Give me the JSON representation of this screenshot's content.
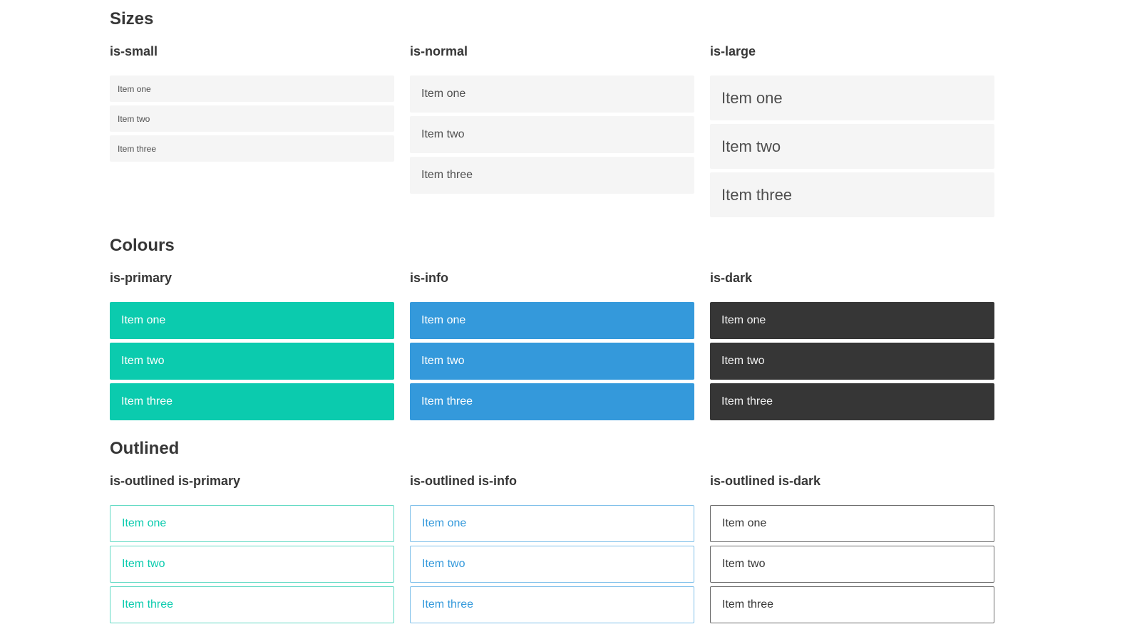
{
  "colors": {
    "white": "#ffffff",
    "heading": "#363636",
    "text": "#4f4f4f",
    "item_bg": "#f5f5f5",
    "primary": "#0bcbae",
    "info": "#3499db",
    "dark": "#363636",
    "primary_border": "#62dac4",
    "info_border": "#7fc0ea",
    "dark_border": "#6d6d6d"
  },
  "sections": [
    {
      "id": "sizes",
      "title": "Sizes",
      "groups": [
        {
          "heading": "is-small",
          "variant": "size-small",
          "items": [
            "Item one",
            "Item two",
            "Item three"
          ]
        },
        {
          "heading": "is-normal",
          "variant": "size-normal",
          "items": [
            "Item one",
            "Item two",
            "Item three"
          ]
        },
        {
          "heading": "is-large",
          "variant": "size-large",
          "items": [
            "Item one",
            "Item two",
            "Item three"
          ]
        }
      ]
    },
    {
      "id": "colours",
      "title": "Colours",
      "groups": [
        {
          "heading": "is-primary",
          "variant": "color-primary",
          "items": [
            "Item one",
            "Item two",
            "Item three"
          ]
        },
        {
          "heading": "is-info",
          "variant": "color-info",
          "items": [
            "Item one",
            "Item two",
            "Item three"
          ]
        },
        {
          "heading": "is-dark",
          "variant": "color-dark",
          "items": [
            "Item one",
            "Item two",
            "Item three"
          ]
        }
      ]
    },
    {
      "id": "outlined",
      "title": "Outlined",
      "groups": [
        {
          "heading": "is-outlined is-primary",
          "variant": "outlined-primary",
          "items": [
            "Item one",
            "Item two",
            "Item three"
          ]
        },
        {
          "heading": "is-outlined is-info",
          "variant": "outlined-info",
          "items": [
            "Item one",
            "Item two",
            "Item three"
          ]
        },
        {
          "heading": "is-outlined is-dark",
          "variant": "outlined-dark",
          "items": [
            "Item one",
            "Item two",
            "Item three"
          ]
        }
      ]
    }
  ]
}
